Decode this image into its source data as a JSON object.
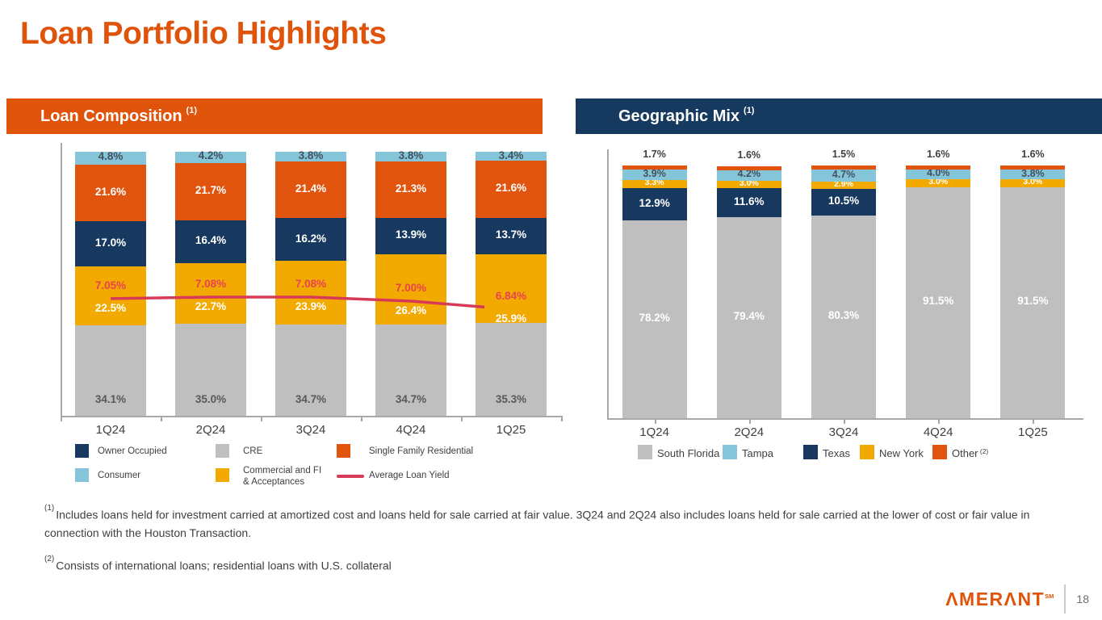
{
  "slide": {
    "title": "Loan Portfolio Highlights",
    "page_number": "18",
    "logo_text": "ΛMERΛNT",
    "logo_sm": "SM"
  },
  "panels": {
    "left": {
      "title": "Loan Composition",
      "sup": "(1)"
    },
    "right": {
      "title": "Geographic Mix",
      "sup": "(1)"
    }
  },
  "footnotes": [
    {
      "ref": "(1)",
      "text": "Includes loans held for investment carried at amortized cost and loans held for sale carried at fair value. 3Q24 and 2Q24 also includes loans held for sale carried at the lower of cost or fair value in connection with the Houston Transaction."
    },
    {
      "ref": "(2)",
      "text": "Consists of international loans; residential loans with U.S. collateral"
    }
  ],
  "colors": {
    "brand_orange": "#E0530A",
    "navy": "#17395F",
    "gray": "#BFBFBF",
    "gold": "#F2A900",
    "lightblue": "#85C5DA",
    "orange": "#E1540E",
    "red_line": "#D63A56",
    "red_text": "#E8444F",
    "dark_text": "#3F3F3F",
    "gray_text": "#595959",
    "axis": "#A8A8A8"
  },
  "chart_data": [
    {
      "id": "loan-composition",
      "type": "bar",
      "stacked": true,
      "title": "Loan Composition",
      "ylim": [
        0,
        100
      ],
      "grid": false,
      "legend_position": "bottom",
      "categories": [
        "1Q24",
        "2Q24",
        "3Q24",
        "4Q24",
        "1Q25"
      ],
      "series": [
        {
          "name": "CRE",
          "color": "#BFBFBF",
          "label_pos": "bottom",
          "label_color": "#595959",
          "values": [
            34.1,
            35.0,
            34.7,
            34.7,
            35.3
          ]
        },
        {
          "name": "Commercial and FI & Acceptances",
          "color": "#F2A900",
          "label_pos": "line-below",
          "label_color": "#FFFFFF",
          "values": [
            22.5,
            22.7,
            23.9,
            26.4,
            25.9
          ]
        },
        {
          "name": "Owner Occupied",
          "color": "#17395F",
          "label_pos": "center",
          "label_color": "#FFFFFF",
          "values": [
            17.0,
            16.4,
            16.2,
            13.9,
            13.7
          ]
        },
        {
          "name": "Single Family Residential",
          "color": "#E1540E",
          "label_pos": "center",
          "label_color": "#FFFFFF",
          "values": [
            21.6,
            21.7,
            21.4,
            21.3,
            21.6
          ]
        },
        {
          "name": "Consumer",
          "color": "#85C5DA",
          "label_pos": "center",
          "label_color": "#43525C",
          "values": [
            4.8,
            4.2,
            3.8,
            3.8,
            3.4
          ]
        }
      ],
      "line_series": {
        "name": "Average Loan Yield",
        "color": "#D63A56",
        "label_color": "#E8444F",
        "values": [
          7.05,
          7.08,
          7.08,
          7.0,
          6.84
        ],
        "labels": [
          "7.05%",
          "7.08%",
          "7.08%",
          "7.00%",
          "6.84%"
        ]
      },
      "legend": [
        {
          "label": "Owner Occupied",
          "swatch": "#17395F",
          "type": "square",
          "col": 0,
          "row": 0
        },
        {
          "label": "Consumer",
          "swatch": "#85C5DA",
          "type": "square",
          "col": 0,
          "row": 1
        },
        {
          "label": "CRE",
          "swatch": "#BFBFBF",
          "type": "square",
          "col": 1,
          "row": 0
        },
        {
          "label": "Commercial and FI\n& Acceptances",
          "swatch": "#F2A900",
          "type": "square",
          "col": 1,
          "row": 1
        },
        {
          "label": "Single Family Residential",
          "swatch": "#E1540E",
          "type": "square",
          "col": 2,
          "row": 0
        },
        {
          "label": "Average Loan Yield",
          "swatch": "#D63A56",
          "type": "line",
          "col": 2,
          "row": 1
        }
      ]
    },
    {
      "id": "geographic-mix",
      "type": "bar",
      "stacked": true,
      "title": "Geographic Mix",
      "ylim": [
        0,
        100
      ],
      "grid": false,
      "legend_position": "bottom",
      "categories": [
        "1Q24",
        "2Q24",
        "3Q24",
        "4Q24",
        "1Q25"
      ],
      "series": [
        {
          "name": "South Florida",
          "color": "#BFBFBF",
          "label_pos": "center",
          "label_color": "#FFFFFF",
          "values": [
            78.2,
            79.4,
            80.3,
            91.5,
            91.5
          ]
        },
        {
          "name": "Texas",
          "color": "#17395F",
          "label_pos": "center",
          "label_color": "#FFFFFF",
          "values": [
            12.9,
            11.6,
            10.5,
            null,
            null
          ]
        },
        {
          "name": "New York",
          "color": "#F2A900",
          "label_pos": "center",
          "label_color": "#FFFFFF",
          "label_size": 10.5,
          "values": [
            3.3,
            3.0,
            2.9,
            3.0,
            3.0
          ]
        },
        {
          "name": "Tampa",
          "color": "#85C5DA",
          "label_pos": "center",
          "label_color": "#43525C",
          "label_size": 12.5,
          "values": [
            3.9,
            4.2,
            4.7,
            4.0,
            3.8
          ]
        },
        {
          "name": "Other",
          "color": "#E1540E",
          "label_pos": "above",
          "label_color": "#3F3F3F",
          "label_size": 12.5,
          "values": [
            1.7,
            1.6,
            1.5,
            1.6,
            1.6
          ]
        }
      ],
      "legend": [
        {
          "label": "South Florida",
          "swatch": "#BFBFBF",
          "type": "square",
          "x": 38
        },
        {
          "label": "Tampa",
          "swatch": "#85C5DA",
          "type": "square",
          "x": 143
        },
        {
          "label": "Texas",
          "swatch": "#17395F",
          "type": "square",
          "x": 243
        },
        {
          "label": "New York",
          "swatch": "#F2A900",
          "type": "square",
          "x": 313
        },
        {
          "label": "Other",
          "swatch": "#E1540E",
          "type": "square",
          "x": 403,
          "sup": "(2)"
        }
      ]
    }
  ]
}
